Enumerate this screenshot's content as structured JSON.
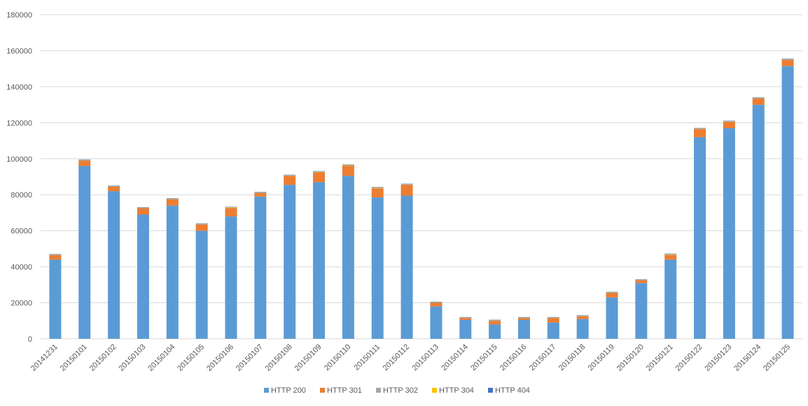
{
  "chart_data": {
    "type": "stacked_bar",
    "categories": [
      "20141231",
      "20150101",
      "20150102",
      "20150103",
      "20150104",
      "20150105",
      "20150106",
      "20150107",
      "20150108",
      "20150109",
      "20150110",
      "20150111",
      "20150112",
      "20150113",
      "20150114",
      "20150115",
      "20150116",
      "20150117",
      "20150118",
      "20150119",
      "20150120",
      "20150121",
      "20150122",
      "20150123",
      "20150124",
      "20150125"
    ],
    "series": [
      {
        "name": "HTTP 200",
        "color": "#5b9bd5",
        "values": [
          44000,
          96000,
          82000,
          69000,
          74000,
          60000,
          68000,
          79000,
          85500,
          87000,
          90500,
          78500,
          79500,
          18000,
          10500,
          8000,
          10500,
          9000,
          11000,
          23000,
          31000,
          44000,
          112000,
          117000,
          130000,
          151500
        ]
      },
      {
        "name": "HTTP 301",
        "color": "#ed7d31",
        "values": [
          2500,
          3000,
          2500,
          3500,
          3500,
          3500,
          4500,
          2000,
          5000,
          5500,
          5500,
          5000,
          6000,
          2000,
          1000,
          2000,
          1000,
          2500,
          1500,
          2500,
          1500,
          2500,
          4500,
          3500,
          3500,
          3500
        ]
      },
      {
        "name": "HTTP 302",
        "color": "#a5a5a5",
        "values": [
          300,
          300,
          300,
          300,
          300,
          300,
          300,
          300,
          300,
          300,
          300,
          300,
          300,
          300,
          300,
          300,
          300,
          300,
          300,
          300,
          300,
          300,
          300,
          300,
          300,
          300
        ]
      },
      {
        "name": "HTTP 304",
        "color": "#ffc000",
        "values": [
          100,
          100,
          100,
          100,
          100,
          100,
          300,
          100,
          100,
          100,
          300,
          300,
          100,
          100,
          100,
          100,
          100,
          100,
          100,
          100,
          100,
          300,
          100,
          100,
          100,
          100
        ]
      },
      {
        "name": "HTTP 404",
        "color": "#4472c4",
        "values": [
          200,
          200,
          200,
          200,
          200,
          200,
          200,
          200,
          200,
          200,
          200,
          200,
          200,
          200,
          200,
          200,
          200,
          200,
          200,
          200,
          200,
          200,
          200,
          200,
          200,
          200
        ]
      }
    ],
    "ylim": [
      0,
      180000
    ],
    "yticks": [
      0,
      20000,
      40000,
      60000,
      80000,
      100000,
      120000,
      140000,
      160000,
      180000
    ],
    "grid": true
  }
}
